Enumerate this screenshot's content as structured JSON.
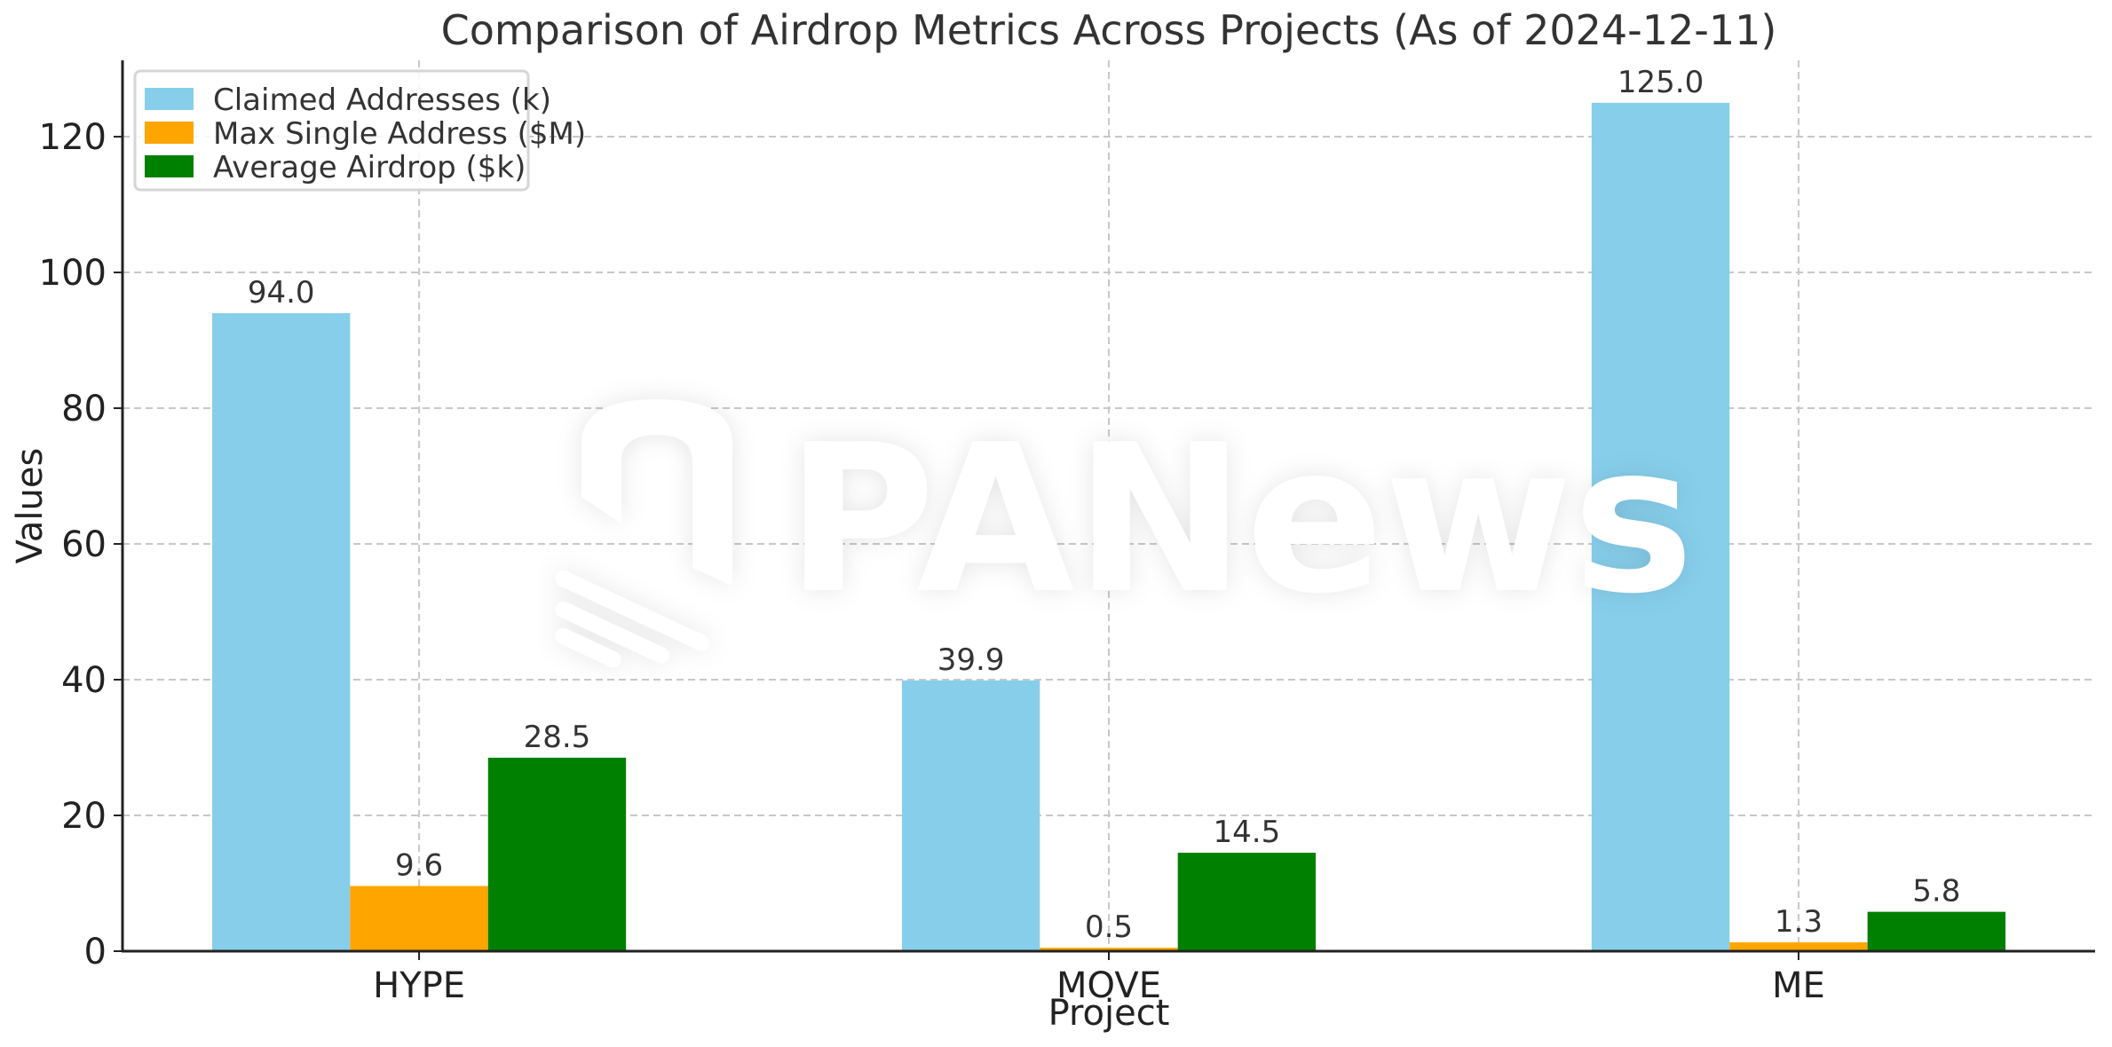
{
  "chart_data": {
    "type": "bar",
    "title": "Comparison of Airdrop Metrics Across Projects (As of 2024-12-11)",
    "xlabel": "Project",
    "ylabel": "Values",
    "categories": [
      "HYPE",
      "MOVE",
      "ME"
    ],
    "series": [
      {
        "name": "Claimed Addresses (k)",
        "color": "#87CEEB",
        "values": [
          94.0,
          39.9,
          125.0
        ],
        "labels": [
          "94.0",
          "39.9",
          "125.0"
        ]
      },
      {
        "name": "Max Single Address ($M)",
        "color": "#FFA500",
        "values": [
          9.6,
          0.5,
          1.3
        ],
        "labels": [
          "9.6",
          "0.5",
          "1.3"
        ]
      },
      {
        "name": "Average Airdrop ($k)",
        "color": "#008000",
        "values": [
          28.5,
          14.5,
          5.8
        ],
        "labels": [
          "28.5",
          "14.5",
          "5.8"
        ]
      }
    ],
    "ylim": [
      0,
      131.25
    ],
    "yticks": [
      0,
      20,
      40,
      60,
      80,
      100,
      120
    ],
    "grid": true,
    "legend_position": "top-left",
    "watermark": "PANews"
  }
}
